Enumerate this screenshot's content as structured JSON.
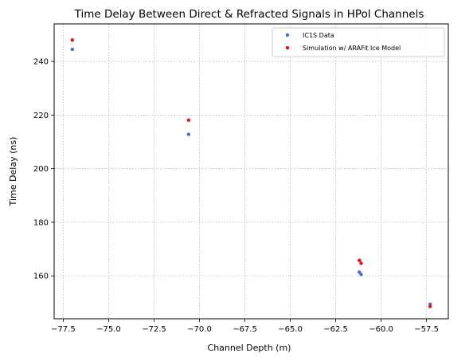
{
  "chart_data": {
    "type": "scatter",
    "title": "Time Delay Between Direct & Refracted Signals in HPol Channels",
    "xlabel": "Channel Depth (m)",
    "ylabel": "Time Delay (ns)",
    "xlim": [
      -78.0,
      -56.3
    ],
    "ylim": [
      144.0,
      254.0
    ],
    "xticks": [
      -77.5,
      -75.0,
      -72.5,
      -70.0,
      -67.5,
      -65.0,
      -62.5,
      -60.0,
      -57.5
    ],
    "xtick_labels": [
      "−77.5",
      "−75.0",
      "−72.5",
      "−70.0",
      "−67.5",
      "−65.0",
      "−62.5",
      "−60.0",
      "−57.5"
    ],
    "yticks": [
      160,
      180,
      200,
      220,
      240
    ],
    "ytick_labels": [
      "160",
      "180",
      "200",
      "220",
      "240"
    ],
    "grid": true,
    "legend_position": "top-right",
    "series": [
      {
        "name": "IC1S Data",
        "color": "#4a6ae0",
        "points": [
          {
            "x": -77.0,
            "y": 244.5
          },
          {
            "x": -70.6,
            "y": 212.8
          },
          {
            "x": -61.2,
            "y": 161.4
          },
          {
            "x": -61.1,
            "y": 160.5
          },
          {
            "x": -57.3,
            "y": 149.4
          }
        ]
      },
      {
        "name": "Simulation w/ ARAFit Ice Model",
        "color": "#ee1111",
        "points": [
          {
            "x": -77.0,
            "y": 248.0
          },
          {
            "x": -70.6,
            "y": 218.1
          },
          {
            "x": -61.2,
            "y": 165.8
          },
          {
            "x": -61.1,
            "y": 164.7
          },
          {
            "x": -57.3,
            "y": 148.6
          }
        ]
      }
    ]
  }
}
